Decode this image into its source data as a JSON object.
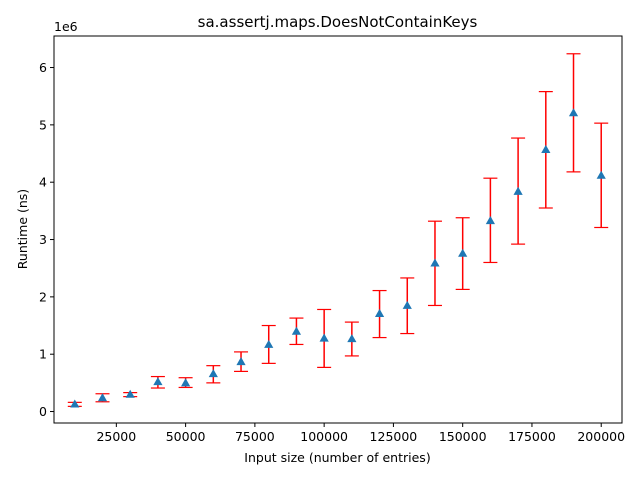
{
  "chart_data": {
    "type": "scatter",
    "title": "sa.assertj.maps.DoesNotContainKeys",
    "xlabel": "Input size (number of entries)",
    "ylabel": "Runtime (ns)",
    "y_offset_label": "1e6",
    "y_scale_factor": 1000000,
    "xlim": [
      2500,
      207500
    ],
    "ylim": [
      -200000,
      6550000
    ],
    "x_ticks": [
      25000,
      50000,
      75000,
      100000,
      125000,
      150000,
      175000,
      200000
    ],
    "x_tick_labels": [
      "25000",
      "50000",
      "75000",
      "100000",
      "125000",
      "150000",
      "175000",
      "200000"
    ],
    "y_ticks": [
      0,
      1000000,
      2000000,
      3000000,
      4000000,
      5000000,
      6000000
    ],
    "y_tick_labels": [
      "0",
      "1",
      "2",
      "3",
      "4",
      "5",
      "6"
    ],
    "grid": false,
    "marker_color": "#1f77b4",
    "errorbar_color": "#ff0000",
    "points": [
      {
        "x": 10000,
        "y": 130000,
        "low": 90000,
        "high": 160000
      },
      {
        "x": 20000,
        "y": 240000,
        "low": 170000,
        "high": 310000
      },
      {
        "x": 30000,
        "y": 300000,
        "low": 260000,
        "high": 330000
      },
      {
        "x": 40000,
        "y": 520000,
        "low": 410000,
        "high": 610000
      },
      {
        "x": 50000,
        "y": 500000,
        "low": 420000,
        "high": 590000
      },
      {
        "x": 60000,
        "y": 660000,
        "low": 500000,
        "high": 800000
      },
      {
        "x": 70000,
        "y": 870000,
        "low": 700000,
        "high": 1040000
      },
      {
        "x": 80000,
        "y": 1170000,
        "low": 840000,
        "high": 1500000
      },
      {
        "x": 90000,
        "y": 1400000,
        "low": 1170000,
        "high": 1630000
      },
      {
        "x": 100000,
        "y": 1280000,
        "low": 770000,
        "high": 1780000
      },
      {
        "x": 110000,
        "y": 1270000,
        "low": 970000,
        "high": 1560000
      },
      {
        "x": 120000,
        "y": 1710000,
        "low": 1290000,
        "high": 2110000
      },
      {
        "x": 130000,
        "y": 1850000,
        "low": 1360000,
        "high": 2330000
      },
      {
        "x": 140000,
        "y": 2590000,
        "low": 1850000,
        "high": 3320000
      },
      {
        "x": 150000,
        "y": 2760000,
        "low": 2130000,
        "high": 3380000
      },
      {
        "x": 160000,
        "y": 3330000,
        "low": 2600000,
        "high": 4070000
      },
      {
        "x": 170000,
        "y": 3840000,
        "low": 2920000,
        "high": 4770000
      },
      {
        "x": 180000,
        "y": 4570000,
        "low": 3550000,
        "high": 5580000
      },
      {
        "x": 190000,
        "y": 5210000,
        "low": 4180000,
        "high": 6240000
      },
      {
        "x": 200000,
        "y": 4120000,
        "low": 3210000,
        "high": 5030000
      }
    ]
  }
}
